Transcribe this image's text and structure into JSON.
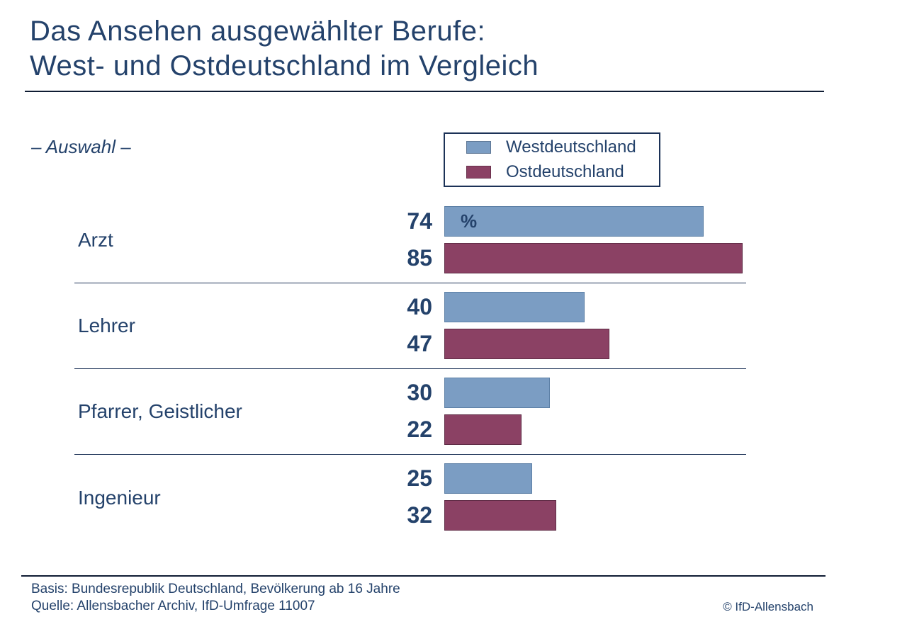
{
  "header": {
    "title_line1": "Das Ansehen ausgewählter Berufe:",
    "title_line2": "West- und Ostdeutschland im Vergleich",
    "subtitle": "– Auswahl –"
  },
  "legend": {
    "position": "top-right",
    "items": [
      {
        "label": "Westdeutschland",
        "color": "#7b9dc3"
      },
      {
        "label": "Ostdeutschland",
        "color": "#8b4164"
      }
    ]
  },
  "chart_data": {
    "type": "bar",
    "orientation": "horizontal",
    "unit": "%",
    "title": "Das Ansehen ausgewählter Berufe: West- und Ostdeutschland im Vergleich",
    "categories": [
      "Arzt",
      "Lehrer",
      "Pfarrer, Geistlicher",
      "Ingenieur"
    ],
    "series": [
      {
        "name": "Westdeutschland",
        "color": "#7b9dc3",
        "values": [
          74,
          40,
          30,
          25
        ]
      },
      {
        "name": "Ostdeutschland",
        "color": "#8b4164",
        "values": [
          85,
          47,
          22,
          32
        ]
      }
    ],
    "xlim": [
      0,
      100
    ],
    "grid": false,
    "value_labels": "left-of-bar",
    "accent_text_color": "#24426b"
  },
  "footer": {
    "basis": "Basis: Bundesrepublik Deutschland, Bevölkerung ab 16 Jahre",
    "quelle": "Quelle: Allensbacher Archiv, IfD-Umfrage 11007",
    "copyright": "© IfD-Allensbach"
  }
}
